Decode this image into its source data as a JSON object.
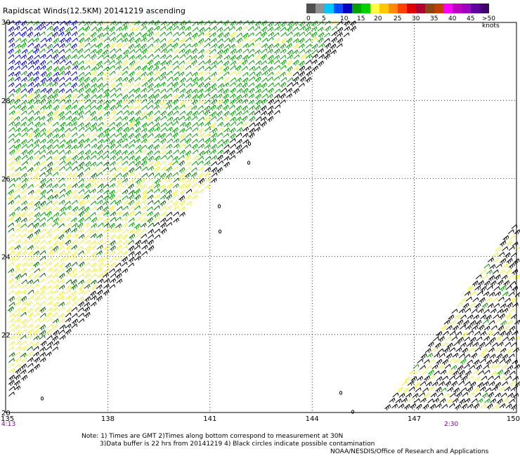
{
  "title": "Rapidscat Winds(12.5KM) 20141219 ascending",
  "legend": {
    "labels": [
      "0",
      "5",
      "10",
      "15",
      "20",
      "25",
      "30",
      "35",
      "40",
      "45",
      ">50 knots"
    ],
    "colors": [
      "#505050",
      "#909090",
      "#00c8ff",
      "#0050ff",
      "#0000c0",
      "#00a000",
      "#00d000",
      "#ffff40",
      "#ffc800",
      "#ff8c00",
      "#ff4000",
      "#e00000",
      "#b00030",
      "#8b4513",
      "#c04000",
      "#ff00ff",
      "#c000c0",
      "#a000c0",
      "#6000a0",
      "#400070"
    ]
  },
  "map": {
    "lon_labels": [
      "135",
      "138",
      "141",
      "144",
      "147",
      "150"
    ],
    "lat_labels": [
      "30",
      "28",
      "26",
      "24",
      "22",
      "20"
    ],
    "lon_range": [
      135,
      150
    ],
    "lat_range": [
      20,
      30
    ]
  },
  "times": {
    "left": "4:13",
    "right": "2:30"
  },
  "notes": {
    "line1": "Note: 1) Times are GMT 2)Times along bottom correspond to measurement at 30N",
    "line2": "3)Data buffer is 22 hrs from 20141219 4) Black circles indicate possible contamination",
    "line3": "NOAA/NESDIS/Office of Research and Applications"
  },
  "colors": {
    "blue": "#0000cc",
    "green": "#00a000",
    "darkgreen": "#006400",
    "yellow": "#f0f040",
    "black": "#000000"
  }
}
